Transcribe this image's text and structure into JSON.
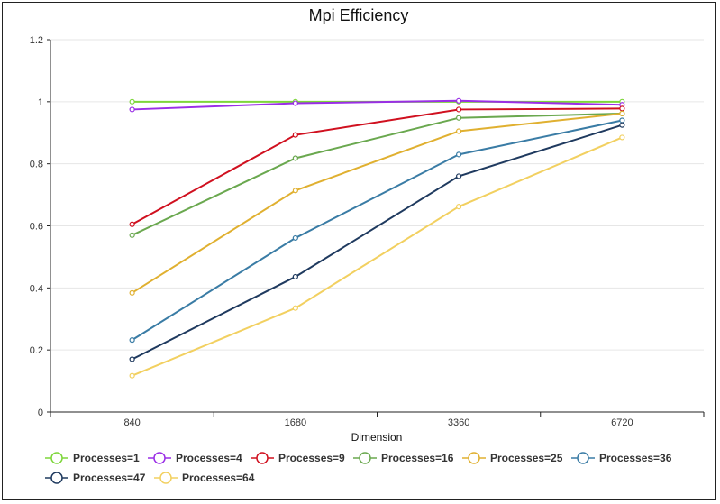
{
  "chart_data": {
    "type": "line",
    "title": "Mpi Efficiency",
    "xlabel": "Dimension",
    "ylabel": "",
    "categories": [
      "840",
      "1680",
      "3360",
      "6720"
    ],
    "ylim": [
      0,
      1.2
    ],
    "yticks": [
      "0",
      "0.2",
      "0.4",
      "0.6",
      "0.8",
      "1",
      "1.2"
    ],
    "grid": true,
    "legend_position": "bottom-left",
    "series": [
      {
        "name": "Processes=1",
        "color": "#7dd63a",
        "values": [
          1.0,
          1.0,
          1.0,
          1.0
        ]
      },
      {
        "name": "Processes=4",
        "color": "#9a2ee6",
        "values": [
          0.975,
          0.995,
          1.003,
          0.99
        ]
      },
      {
        "name": "Processes=9",
        "color": "#d0101f",
        "values": [
          0.605,
          0.893,
          0.975,
          0.978
        ]
      },
      {
        "name": "Processes=16",
        "color": "#6aa84f",
        "values": [
          0.57,
          0.818,
          0.948,
          0.962
        ]
      },
      {
        "name": "Processes=25",
        "color": "#e0b030",
        "values": [
          0.384,
          0.714,
          0.905,
          0.962
        ]
      },
      {
        "name": "Processes=36",
        "color": "#3a7ca5",
        "values": [
          0.232,
          0.561,
          0.83,
          0.94
        ]
      },
      {
        "name": "Processes=47",
        "color": "#1f3a5f",
        "values": [
          0.17,
          0.436,
          0.76,
          0.925
        ]
      },
      {
        "name": "Processes=64",
        "color": "#f2d060",
        "values": [
          0.117,
          0.335,
          0.662,
          0.885
        ]
      }
    ]
  }
}
